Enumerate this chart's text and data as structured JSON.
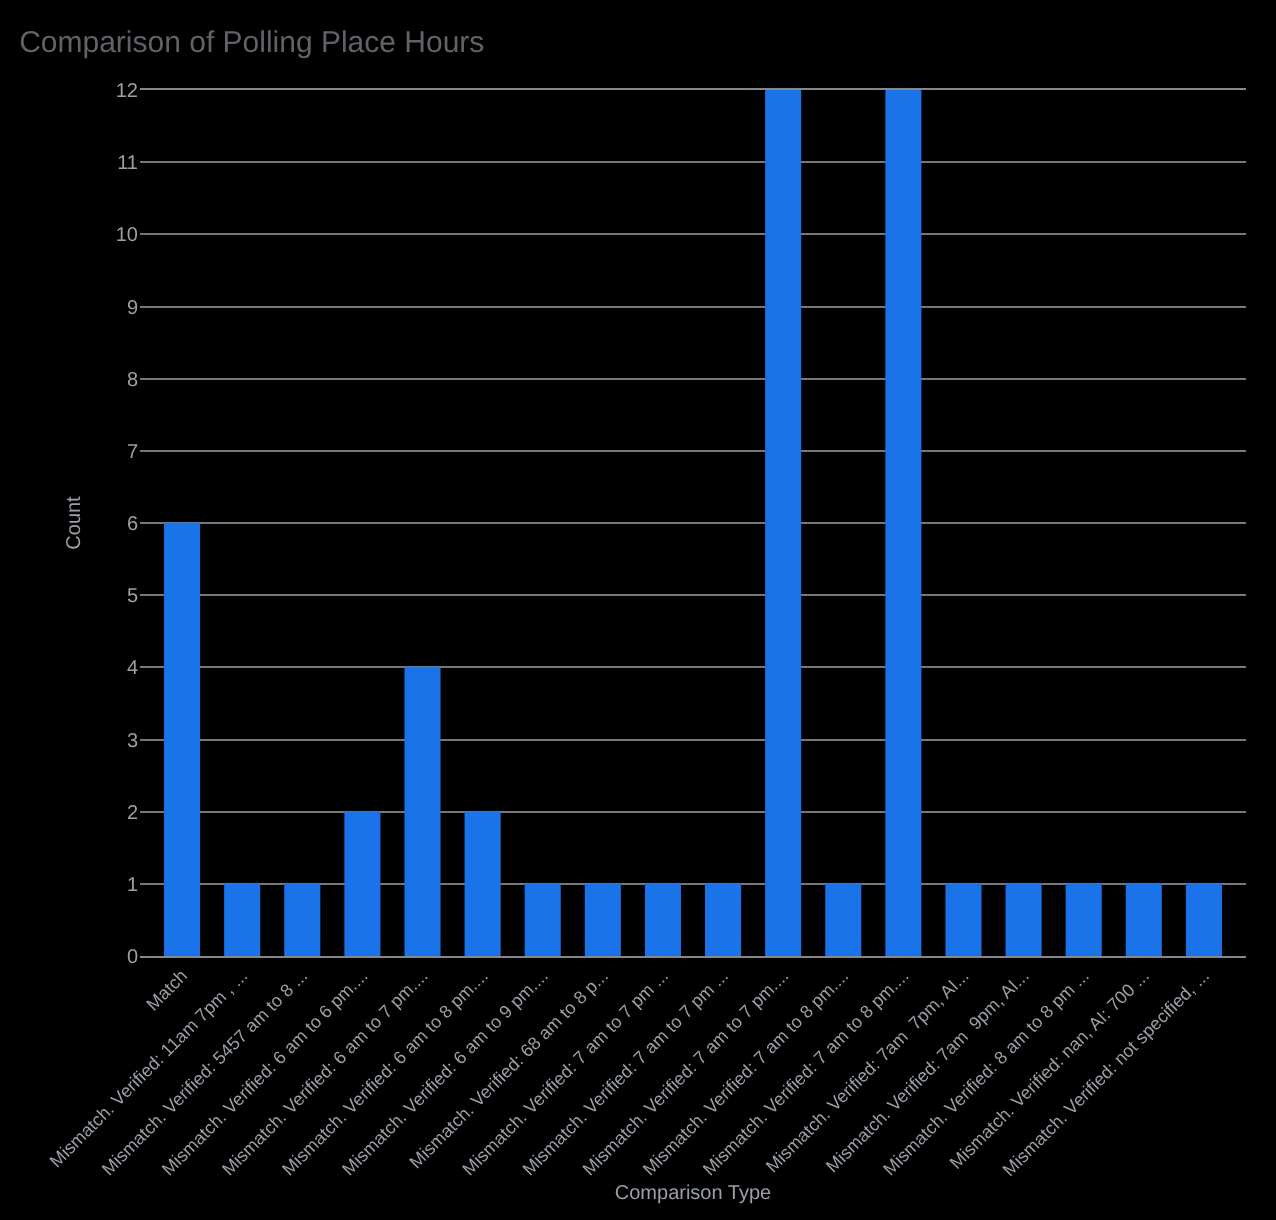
{
  "chart_data": {
    "type": "bar",
    "title": "Comparison of Polling Place Hours",
    "xlabel": "Comparison Type",
    "ylabel": "Count",
    "categories": [
      "Match",
      "Mismatch. Verified: 11am 7pm , ...",
      "Mismatch. Verified: 5457 am to 8 ...",
      "Mismatch. Verified: 6 am to 6 pm....",
      "Mismatch. Verified: 6 am to 7 pm....",
      "Mismatch. Verified: 6 am to 8 pm....",
      "Mismatch. Verified: 6 am to 9 pm....",
      "Mismatch. Verified: 68 am to 8 p...",
      "Mismatch. Verified: 7 am to 7 pm ...",
      "Mismatch. Verified: 7 am to 7 pm ...",
      "Mismatch. Verified: 7 am to 7 pm....",
      "Mismatch. Verified: 7 am to 8 pm....",
      "Mismatch. Verified: 7 am to 8 pm....",
      "Mismatch. Verified: 7am  7pm, AI...",
      "Mismatch. Verified: 7am  9pm, AI...",
      "Mismatch. Verified: 8 am to 8 pm ...",
      "Mismatch. Verified: nan, AI: 700 ...",
      "Mismatch. Verified: not specified, ..."
    ],
    "series": [
      {
        "color": "#1a73e8",
        "values": [
          6,
          1,
          1,
          2,
          4,
          2,
          1,
          1,
          1,
          1,
          12,
          1,
          12,
          1,
          1,
          1,
          1,
          1
        ]
      }
    ],
    "ylim": [
      0,
      12
    ],
    "yticks": [
      0,
      1,
      2,
      3,
      4,
      5,
      6,
      7,
      8,
      9,
      10,
      11,
      12
    ],
    "grid": "y"
  }
}
